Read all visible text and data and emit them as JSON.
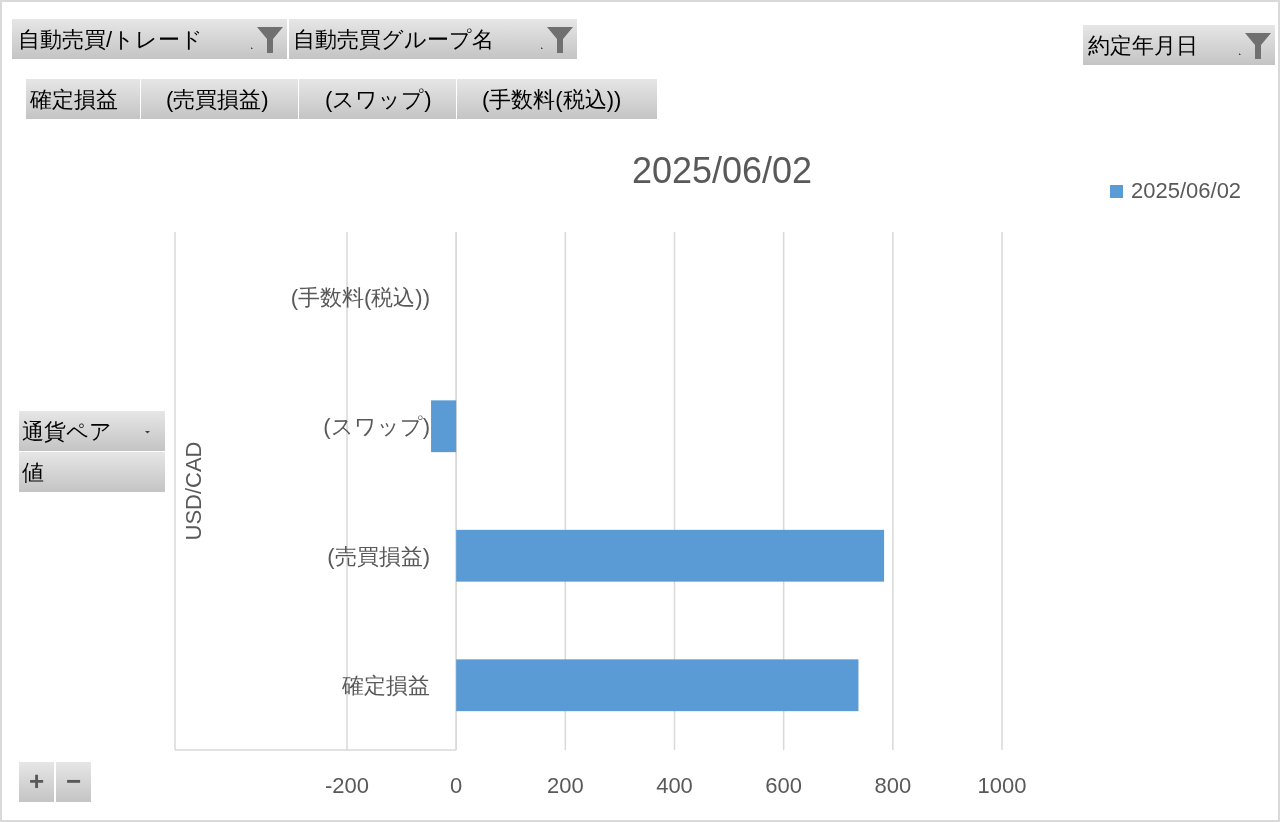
{
  "chart_data": {
    "type": "bar",
    "orientation": "horizontal",
    "title": "2025/06/02",
    "categories": [
      "(手数料(税込))",
      "(スワップ)",
      "(売買損益)",
      "確定損益"
    ],
    "series": [
      {
        "name": "2025/06/02",
        "color": "#5b9bd5",
        "values": [
          0,
          -46,
          784,
          737
        ]
      }
    ],
    "xlim": [
      -200,
      1000
    ],
    "xticks": [
      -200,
      0,
      200,
      400,
      600,
      800,
      1000
    ],
    "grid": "x",
    "legend": "top right",
    "annotations": [
      "自動売買/トレード",
      "自動売買グループ名",
      "約定年月日",
      "確定損益",
      "(売買損益)",
      "(スワップ)",
      "(手数料(税込))",
      "通貨ペア",
      "値",
      "USD/CAD",
      "+",
      "−"
    ]
  }
}
